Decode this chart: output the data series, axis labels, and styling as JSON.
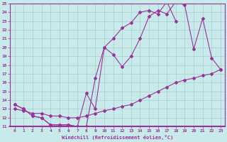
{
  "xlabel": "Windchill (Refroidissement éolien,°C)",
  "bg_color": "#c8eaea",
  "line_color": "#993399",
  "grid_color": "#aacccc",
  "xlim": [
    -0.5,
    23.5
  ],
  "ylim": [
    11,
    25
  ],
  "xticks": [
    0,
    1,
    2,
    3,
    4,
    5,
    6,
    7,
    8,
    9,
    10,
    11,
    12,
    13,
    14,
    15,
    16,
    17,
    18,
    19,
    20,
    21,
    22,
    23
  ],
  "yticks": [
    11,
    12,
    13,
    14,
    15,
    16,
    17,
    18,
    19,
    20,
    21,
    22,
    23,
    24,
    25
  ],
  "line1_x": [
    0,
    1,
    2,
    3,
    4,
    5,
    6,
    7,
    8,
    9,
    10,
    11,
    12,
    13,
    14,
    15,
    16,
    17,
    18
  ],
  "line1_y": [
    13.5,
    13.0,
    12.2,
    12.0,
    11.2,
    11.2,
    11.2,
    11.0,
    11.0,
    16.5,
    20.0,
    21.0,
    22.2,
    22.8,
    24.0,
    24.2,
    23.8,
    25.2,
    23.0
  ],
  "line2_x": [
    0,
    1,
    2,
    3,
    4,
    5,
    6,
    7,
    8,
    9,
    10,
    11,
    12,
    13,
    14,
    15,
    16,
    17,
    18,
    19,
    20,
    21,
    22,
    23
  ],
  "line2_y": [
    13.5,
    13.0,
    12.2,
    12.0,
    11.2,
    11.2,
    11.2,
    11.0,
    14.8,
    13.0,
    20.0,
    19.2,
    17.8,
    19.0,
    21.0,
    23.5,
    24.2,
    23.8,
    25.2,
    24.8,
    19.8,
    23.3,
    18.8,
    17.5
  ],
  "line3_x": [
    0,
    1,
    2,
    3,
    4,
    5,
    6,
    7,
    8,
    9,
    10,
    11,
    12,
    13,
    14,
    15,
    16,
    17,
    18,
    19,
    20,
    21,
    22,
    23
  ],
  "line3_y": [
    13.0,
    12.8,
    12.5,
    12.5,
    12.2,
    12.2,
    12.0,
    12.0,
    12.2,
    12.5,
    12.8,
    13.0,
    13.3,
    13.5,
    14.0,
    14.5,
    15.0,
    15.5,
    16.0,
    16.3,
    16.5,
    16.8,
    17.0,
    17.5
  ]
}
